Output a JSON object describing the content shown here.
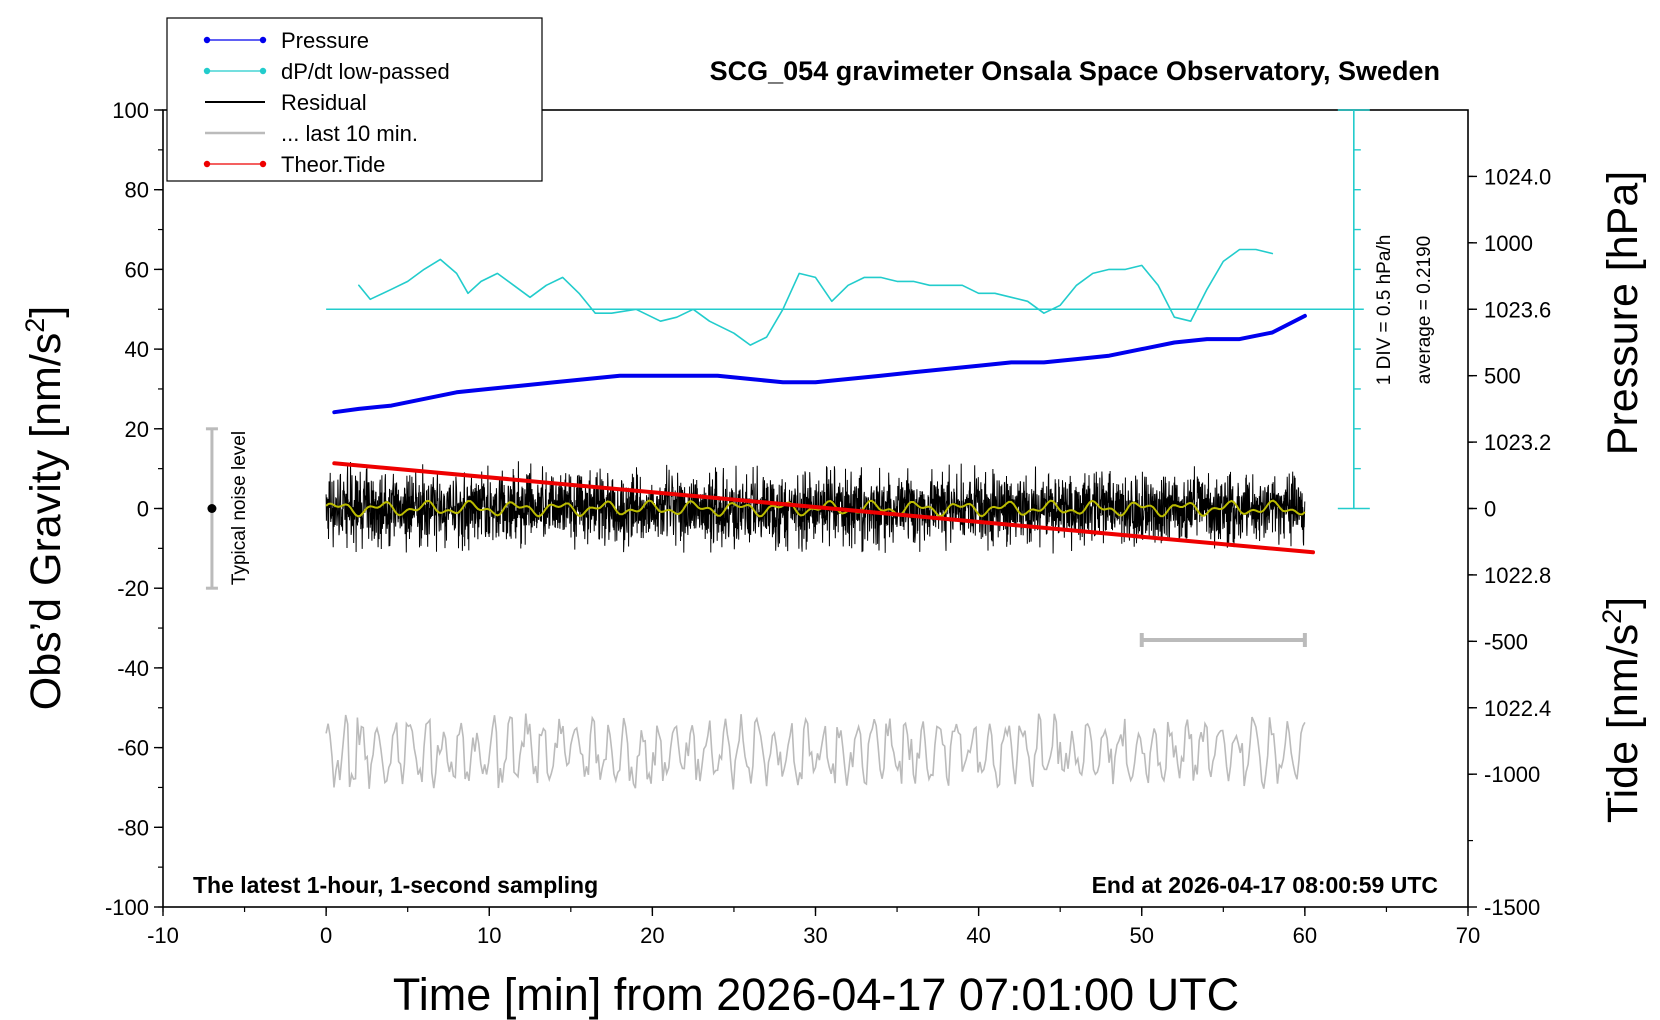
{
  "chart_data": {
    "type": "line",
    "title": "SCG_054 gravimeter Onsala Space Observatory, Sweden",
    "xlabel": "Time [min] from 2026-04-17 07:01:00 UTC",
    "ylabel_left": {
      "main": "Obs’d Gravity [nm/s",
      "sup": "2",
      "tail": "]"
    },
    "ylabel_right_top": "Pressure [hPa]",
    "ylabel_right_bottom": {
      "main": "Tide [nm/s",
      "sup": "2",
      "tail": "]"
    },
    "xlim": [
      -10,
      70
    ],
    "ylim": [
      -100,
      100
    ],
    "pressure_lim": [
      1021.8,
      1024.2
    ],
    "tide_lim": [
      -1500,
      1500
    ],
    "x_ticks": [
      "-10",
      "0",
      "10",
      "20",
      "30",
      "40",
      "50",
      "60",
      "70"
    ],
    "y_ticks": [
      "100",
      "80",
      "60",
      "40",
      "20",
      "0",
      "-20",
      "-40",
      "-60",
      "-80",
      "-100"
    ],
    "pressure_ticks": [
      "1024.0",
      "1023.6",
      "1023.2",
      "1022.8",
      "1022.4"
    ],
    "tide_ticks": [
      "1000",
      "500",
      "0",
      "-500",
      "-1000",
      "-1500"
    ],
    "legend": {
      "position": "top-left",
      "entries": [
        {
          "label": "Pressure",
          "color": "#0000ee",
          "marker": true
        },
        {
          "label": "dP/dt low-passed",
          "color": "#22cccc",
          "marker": true
        },
        {
          "label": "Residual",
          "color": "#000000",
          "marker": false
        },
        {
          "label": "... last 10 min.",
          "color": "#bbbbbb",
          "marker": false
        },
        {
          "label": "Theor.Tide",
          "color": "#ee0000",
          "marker": true
        }
      ]
    },
    "annotations": {
      "bottom_left": "The latest 1-hour, 1-second sampling",
      "bottom_right": "End at 2026-04-17 08:00:59 UTC",
      "noise_label": "Typical noise level",
      "div_label": "1 DIV = 0.5 hPa/h",
      "average_label": "average = 0.2190"
    },
    "noise_bar": {
      "x": -7,
      "y_center": 0,
      "y_range": [
        -20,
        20
      ]
    },
    "dpdt_scale": {
      "x": 63,
      "y_range": [
        0,
        100
      ],
      "avg_y": 50
    },
    "last10_bar": {
      "x_range": [
        50,
        60
      ],
      "y": -33
    },
    "series": [
      {
        "name": "Pressure",
        "axis": "pressure",
        "color": "#0000ee",
        "x": [
          0.5,
          2,
          4,
          6,
          8,
          10,
          12,
          14,
          16,
          18,
          20,
          22,
          24,
          26,
          28,
          30,
          32,
          34,
          36,
          38,
          40,
          42,
          44,
          46,
          48,
          50,
          52,
          54,
          56,
          58,
          60
        ],
        "values": [
          1023.29,
          1023.3,
          1023.31,
          1023.33,
          1023.35,
          1023.36,
          1023.37,
          1023.38,
          1023.39,
          1023.4,
          1023.4,
          1023.4,
          1023.4,
          1023.39,
          1023.38,
          1023.38,
          1023.39,
          1023.4,
          1023.41,
          1023.42,
          1023.43,
          1023.44,
          1023.44,
          1023.45,
          1023.46,
          1023.48,
          1023.5,
          1023.51,
          1023.51,
          1023.53,
          1023.58
        ]
      },
      {
        "name": "dP/dt low-passed",
        "axis": "gravity",
        "color": "#22cccc",
        "x": [
          2,
          2.7,
          4,
          5,
          6,
          7,
          8,
          8.7,
          9.5,
          10.5,
          11.5,
          12.5,
          13.5,
          14.5,
          15.5,
          16.5,
          17.5,
          19,
          20.5,
          21.5,
          22.5,
          23.5,
          25,
          26,
          27,
          28,
          29,
          30,
          31,
          32,
          33,
          34,
          35,
          36,
          37,
          38,
          39,
          40,
          41,
          42,
          43,
          44,
          45,
          46,
          47,
          48,
          49,
          50,
          51,
          52,
          53,
          54,
          55,
          56,
          57,
          58
        ],
        "values": [
          56,
          52.5,
          55,
          57,
          60,
          62.5,
          59,
          54,
          57,
          59,
          56,
          53,
          56,
          58,
          54,
          49,
          49,
          50,
          47,
          48,
          50,
          47,
          44,
          41,
          43,
          50,
          59,
          58,
          52,
          56,
          58,
          58,
          57,
          57,
          56,
          56,
          56,
          54,
          54,
          53,
          52,
          49,
          51,
          56,
          59,
          60,
          60,
          61,
          56,
          48,
          47,
          55,
          62,
          65,
          65,
          64
        ]
      },
      {
        "name": "Theor.Tide",
        "axis": "tide",
        "color": "#ee0000",
        "x": [
          0.5,
          60.5
        ],
        "values": [
          170,
          -165
        ]
      }
    ],
    "residual": {
      "color": "#000000",
      "smooth_color": "#bbbb00",
      "x_range": [
        0,
        60
      ],
      "amplitude": 12
    },
    "last10": {
      "color": "#bbbbbb",
      "x_range": [
        0,
        60
      ],
      "center": -61,
      "amplitude": 10
    }
  }
}
